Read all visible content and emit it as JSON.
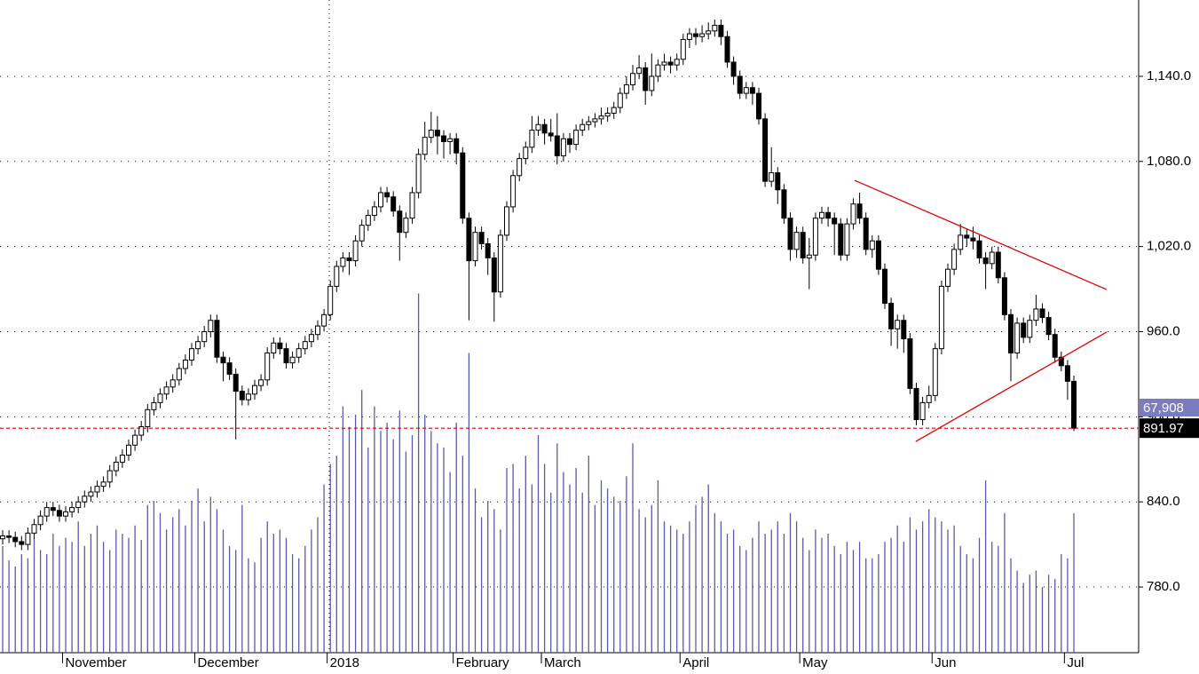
{
  "chart_data": {
    "type": "candlestick",
    "up_color": "#ffffff",
    "down_color": "#000000",
    "volume_color": "#5a5aa8",
    "trend_color": "#e00000",
    "last_line_color": "#e00000",
    "grid": true,
    "ylim": [
      733.7,
      1193.8
    ],
    "yticks": [
      {
        "value": 780,
        "label": "780.0"
      },
      {
        "value": 840,
        "label": "840.0"
      },
      {
        "value": 900,
        "label": "900.0"
      },
      {
        "value": 960,
        "label": "960.0"
      },
      {
        "value": 1020,
        "label": "1,020.0"
      },
      {
        "value": 1080,
        "label": "1,080.0"
      },
      {
        "value": 1140,
        "label": "1,140.0"
      }
    ],
    "y2lim": [
      0,
      318000
    ],
    "xticks": [
      {
        "value": 10,
        "label": "November"
      },
      {
        "value": 31,
        "label": "December"
      },
      {
        "value": 52,
        "label": "2018"
      },
      {
        "value": 72,
        "label": "February"
      },
      {
        "value": 86,
        "label": "March"
      },
      {
        "value": 108,
        "label": "April"
      },
      {
        "value": 127,
        "label": "May"
      },
      {
        "value": 148,
        "label": "Jun"
      },
      {
        "value": 169,
        "label": "Jul"
      }
    ],
    "open": [
      814,
      816,
      815,
      812,
      810,
      818,
      824,
      830,
      836,
      834,
      830,
      833,
      836,
      840,
      844,
      847,
      851,
      854,
      862,
      868,
      873,
      880,
      887,
      893,
      905,
      910,
      916,
      921,
      926,
      934,
      940,
      948,
      953,
      960,
      968,
      942,
      938,
      930,
      918,
      912,
      916,
      922,
      926,
      945,
      952,
      948,
      938,
      942,
      948,
      953,
      958,
      964,
      972,
      992,
      1006,
      1012,
      1010,
      1024,
      1035,
      1042,
      1048,
      1058,
      1055,
      1045,
      1030,
      1040,
      1058,
      1085,
      1097,
      1102,
      1098,
      1094,
      1096,
      1086,
      1040,
      1010,
      1030,
      1022,
      1012,
      988,
      1028,
      1048,
      1070,
      1082,
      1090,
      1102,
      1106,
      1100,
      1098,
      1084,
      1096,
      1092,
      1102,
      1106,
      1108,
      1110,
      1112,
      1114,
      1118,
      1128,
      1134,
      1142,
      1146,
      1130,
      1140,
      1148,
      1150,
      1148,
      1152,
      1166,
      1170,
      1168,
      1170,
      1172,
      1176,
      1168,
      1150,
      1140,
      1128,
      1132,
      1128,
      1110,
      1066,
      1072,
      1060,
      1040,
      1018,
      1030,
      1012,
      1014,
      1040,
      1044,
      1040,
      1036,
      1014,
      1036,
      1050,
      1040,
      1018,
      1024,
      1004,
      980,
      962,
      968,
      955,
      920,
      898,
      910,
      915,
      948,
      992,
      1004,
      1018,
      1028,
      1026,
      1024,
      1012,
      1008,
      1016,
      998,
      972,
      945,
      966,
      956,
      968,
      976,
      970,
      958,
      942,
      936,
      925
    ],
    "high": [
      820,
      820,
      819,
      816,
      822,
      828,
      834,
      840,
      840,
      838,
      837,
      840,
      844,
      848,
      851,
      855,
      858,
      866,
      872,
      877,
      884,
      891,
      897,
      909,
      914,
      920,
      925,
      930,
      938,
      944,
      952,
      957,
      964,
      972,
      972,
      946,
      942,
      934,
      922,
      920,
      926,
      930,
      949,
      956,
      956,
      952,
      946,
      952,
      957,
      962,
      968,
      976,
      996,
      1010,
      1016,
      1016,
      1028,
      1039,
      1046,
      1052,
      1062,
      1062,
      1059,
      1049,
      1044,
      1062,
      1089,
      1108,
      1115,
      1112,
      1102,
      1100,
      1100,
      1090,
      1044,
      1034,
      1034,
      1026,
      1016,
      1032,
      1052,
      1074,
      1086,
      1094,
      1112,
      1112,
      1110,
      1110,
      1114,
      1100,
      1100,
      1106,
      1110,
      1112,
      1114,
      1118,
      1118,
      1122,
      1132,
      1140,
      1148,
      1155,
      1150,
      1156,
      1152,
      1156,
      1154,
      1156,
      1170,
      1174,
      1174,
      1176,
      1178,
      1180,
      1180,
      1172,
      1154,
      1144,
      1136,
      1136,
      1132,
      1114,
      1090,
      1076,
      1064,
      1044,
      1034,
      1034,
      1026,
      1044,
      1048,
      1048,
      1044,
      1040,
      1040,
      1054,
      1058,
      1044,
      1028,
      1028,
      1008,
      984,
      972,
      972,
      959,
      924,
      914,
      922,
      952,
      996,
      1008,
      1022,
      1036,
      1032,
      1034,
      1028,
      1016,
      1020,
      1020,
      1002,
      976,
      970,
      970,
      972,
      986,
      980,
      974,
      962,
      946,
      940,
      929
    ],
    "low": [
      810,
      811,
      808,
      806,
      806,
      814,
      820,
      826,
      830,
      826,
      826,
      829,
      832,
      836,
      840,
      843,
      847,
      850,
      858,
      864,
      869,
      876,
      883,
      889,
      901,
      906,
      912,
      917,
      922,
      930,
      936,
      944,
      949,
      956,
      938,
      925,
      926,
      884,
      908,
      908,
      912,
      918,
      922,
      941,
      944,
      934,
      934,
      938,
      944,
      949,
      954,
      960,
      968,
      988,
      1002,
      1000,
      1006,
      1020,
      1031,
      1038,
      1044,
      1051,
      1041,
      1010,
      1026,
      1036,
      1054,
      1081,
      1093,
      1085,
      1082,
      1085,
      1078,
      1036,
      968,
      1006,
      1018,
      1000,
      967,
      984,
      1024,
      1044,
      1066,
      1078,
      1086,
      1098,
      1092,
      1094,
      1078,
      1080,
      1086,
      1088,
      1098,
      1102,
      1104,
      1106,
      1108,
      1110,
      1114,
      1124,
      1130,
      1138,
      1120,
      1126,
      1136,
      1144,
      1142,
      1144,
      1148,
      1160,
      1162,
      1164,
      1166,
      1168,
      1162,
      1146,
      1134,
      1124,
      1124,
      1120,
      1106,
      1062,
      1062,
      1050,
      1036,
      1010,
      1012,
      1008,
      990,
      1010,
      1036,
      1034,
      1014,
      1010,
      1010,
      1032,
      1036,
      1014,
      1012,
      1000,
      976,
      950,
      948,
      945,
      916,
      894,
      894,
      906,
      911,
      944,
      988,
      1000,
      1014,
      1020,
      1018,
      1008,
      990,
      1004,
      994,
      968,
      925,
      941,
      952,
      952,
      964,
      966,
      954,
      938,
      932,
      912,
      890
    ],
    "close": [
      816,
      815,
      812,
      810,
      818,
      824,
      830,
      836,
      834,
      830,
      833,
      836,
      840,
      844,
      847,
      851,
      854,
      862,
      868,
      873,
      880,
      887,
      893,
      905,
      910,
      916,
      921,
      926,
      934,
      940,
      948,
      953,
      960,
      968,
      942,
      938,
      930,
      918,
      912,
      916,
      922,
      926,
      945,
      952,
      948,
      938,
      942,
      948,
      953,
      958,
      964,
      972,
      992,
      1006,
      1012,
      1010,
      1024,
      1035,
      1042,
      1048,
      1058,
      1055,
      1045,
      1030,
      1040,
      1058,
      1085,
      1097,
      1102,
      1098,
      1094,
      1096,
      1086,
      1040,
      1010,
      1030,
      1022,
      1012,
      988,
      1028,
      1048,
      1070,
      1082,
      1090,
      1102,
      1106,
      1100,
      1098,
      1084,
      1096,
      1092,
      1102,
      1106,
      1108,
      1110,
      1112,
      1114,
      1118,
      1128,
      1134,
      1142,
      1146,
      1130,
      1140,
      1148,
      1150,
      1148,
      1152,
      1166,
      1170,
      1168,
      1170,
      1172,
      1176,
      1168,
      1150,
      1140,
      1128,
      1132,
      1128,
      1110,
      1066,
      1072,
      1060,
      1040,
      1018,
      1030,
      1012,
      1014,
      1040,
      1044,
      1040,
      1036,
      1014,
      1036,
      1050,
      1040,
      1018,
      1024,
      1004,
      980,
      962,
      968,
      955,
      920,
      898,
      910,
      915,
      948,
      992,
      1004,
      1018,
      1028,
      1026,
      1024,
      1012,
      1008,
      1016,
      998,
      972,
      945,
      966,
      956,
      968,
      976,
      970,
      958,
      942,
      936,
      925,
      891.97
    ],
    "volume": [
      52000,
      45000,
      42000,
      48000,
      46000,
      56000,
      50000,
      48000,
      58000,
      52000,
      56000,
      54000,
      64000,
      52000,
      58000,
      62000,
      54000,
      50000,
      60000,
      58000,
      56000,
      62000,
      55000,
      72000,
      74000,
      68000,
      60000,
      66000,
      70000,
      62000,
      74000,
      80000,
      64000,
      76000,
      70000,
      60000,
      52000,
      50000,
      72000,
      46000,
      44000,
      56000,
      64000,
      58000,
      60000,
      56000,
      48000,
      46000,
      52000,
      60000,
      66000,
      82000,
      92000,
      96000,
      120000,
      110000,
      116000,
      128000,
      100000,
      120000,
      108000,
      112000,
      104000,
      118000,
      98000,
      106000,
      175000,
      116000,
      108000,
      102000,
      100000,
      88000,
      112000,
      96000,
      146000,
      80000,
      66000,
      74000,
      70000,
      60000,
      90000,
      92000,
      80000,
      96000,
      82000,
      106000,
      92000,
      78000,
      102000,
      88000,
      82000,
      90000,
      78000,
      96000,
      72000,
      84000,
      80000,
      76000,
      74000,
      86000,
      102000,
      70000,
      66000,
      72000,
      84000,
      64000,
      62000,
      60000,
      58000,
      64000,
      72000,
      76000,
      82000,
      68000,
      64000,
      58000,
      60000,
      52000,
      50000,
      56000,
      64000,
      58000,
      60000,
      64000,
      58000,
      68000,
      64000,
      56000,
      50000,
      60000,
      56000,
      58000,
      52000,
      48000,
      54000,
      50000,
      54000,
      46000,
      46000,
      48000,
      54000,
      56000,
      62000,
      54000,
      66000,
      60000,
      64000,
      70000,
      66000,
      64000,
      60000,
      62000,
      52000,
      48000,
      46000,
      56000,
      84000,
      54000,
      52000,
      68000,
      46000,
      40000,
      34000,
      38000,
      40000,
      32000,
      38000,
      36000,
      48000,
      46000,
      67908
    ],
    "volume_last_label": "67,908",
    "trendlines": [
      {
        "x": [
          135.2,
          175.2
        ],
        "y": [
          1066.7,
          989.7
        ]
      },
      {
        "x": [
          144.9,
          175.2
        ],
        "y": [
          882.6,
          959.7
        ]
      }
    ]
  }
}
